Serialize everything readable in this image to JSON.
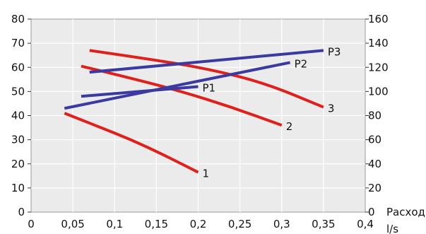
{
  "chart_data": {
    "type": "line",
    "x_ticks": [
      "0",
      "0,05",
      "0,1",
      "0,15",
      "0,2",
      "0,25",
      "0,3",
      "0,35",
      "0,4"
    ],
    "y_left_ticks": [
      "0",
      "10",
      "20",
      "30",
      "40",
      "50",
      "60",
      "70",
      "80"
    ],
    "y_right_ticks": [
      "0",
      "20",
      "40",
      "60",
      "80",
      "100",
      "120",
      "140",
      "160"
    ],
    "xlim": [
      0,
      0.4
    ],
    "ylim_left": [
      0,
      80
    ],
    "ylim_right": [
      0,
      160
    ],
    "xlabel_line1": "Расход",
    "xlabel_line2": "l/s",
    "grid": true,
    "series": [
      {
        "name": "1",
        "axis": "left",
        "color": "#e0201c",
        "x": [
          0.04,
          0.08,
          0.12,
          0.16,
          0.2
        ],
        "y": [
          41,
          35.5,
          30,
          23.5,
          16.5
        ]
      },
      {
        "name": "2",
        "axis": "left",
        "color": "#e0201c",
        "x": [
          0.06,
          0.12,
          0.18,
          0.24,
          0.3
        ],
        "y": [
          60.5,
          55.5,
          50,
          43.5,
          36
        ]
      },
      {
        "name": "3",
        "axis": "left",
        "color": "#e0201c",
        "x": [
          0.07,
          0.14,
          0.21,
          0.28,
          0.35
        ],
        "y": [
          67,
          63.5,
          59.5,
          53.5,
          43.5
        ]
      },
      {
        "name": "P1",
        "axis": "right",
        "color": "#3a3aa0",
        "x": [
          0.06,
          0.2
        ],
        "y": [
          96,
          104
        ]
      },
      {
        "name": "P2",
        "axis": "right",
        "color": "#3a3aa0",
        "x": [
          0.04,
          0.31
        ],
        "y": [
          86,
          124
        ]
      },
      {
        "name": "P3",
        "axis": "right",
        "color": "#3a3aa0",
        "x": [
          0.07,
          0.35
        ],
        "y": [
          116,
          134
        ]
      }
    ]
  }
}
